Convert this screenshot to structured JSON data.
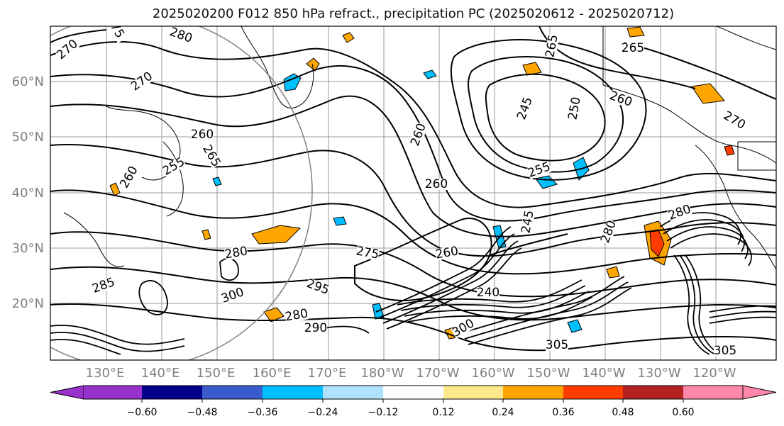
{
  "title": "2025020200 F012 850 hPa refract., precipitation PC (2025020612 - 2025020712)",
  "map": {
    "lat_labels": [
      "60°N",
      "50°N",
      "40°N",
      "30°N",
      "20°N"
    ],
    "lon_labels": [
      "130°E",
      "140°E",
      "150°E",
      "160°E",
      "170°E",
      "180°W",
      "170°W",
      "160°W",
      "150°W",
      "140°W",
      "130°W",
      "120°W"
    ],
    "contour_labels": [
      "270",
      "75",
      "280",
      "265",
      "265",
      "270",
      "260",
      "255",
      "245",
      "250",
      "260",
      "270",
      "260",
      "265",
      "260",
      "260",
      "255",
      "245",
      "280",
      "280",
      "280",
      "275",
      "260",
      "285",
      "300",
      "280",
      "290",
      "295",
      "240",
      "300",
      "305",
      "305"
    ]
  },
  "colorbar": {
    "ticks": [
      "−0.60",
      "−0.48",
      "−0.36",
      "−0.24",
      "−0.12",
      "0.12",
      "0.24",
      "0.36",
      "0.48",
      "0.60"
    ],
    "colors": [
      "#9932cc",
      "#00008b",
      "#3a5bcc",
      "#00bfff",
      "#b0e2ff",
      "#ffffff",
      "#ffe98a",
      "#ffa500",
      "#ff3c00",
      "#b22222",
      "#ff88aa"
    ]
  }
}
